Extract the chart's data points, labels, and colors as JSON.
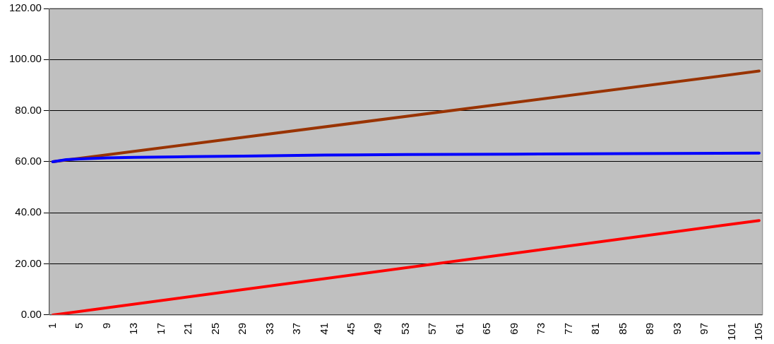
{
  "chart_data": {
    "type": "line",
    "xlim": [
      0.5,
      105.5
    ],
    "xticks": [
      1,
      5,
      9,
      13,
      17,
      21,
      25,
      29,
      33,
      37,
      41,
      45,
      49,
      53,
      57,
      61,
      65,
      69,
      73,
      77,
      81,
      85,
      89,
      93,
      97,
      101,
      105
    ],
    "ylim": [
      0,
      120
    ],
    "yticks": [
      {
        "value": 0,
        "label": "0.00"
      },
      {
        "value": 20,
        "label": "20.00"
      },
      {
        "value": 40,
        "label": "40.00"
      },
      {
        "value": 60,
        "label": "60.00"
      },
      {
        "value": 80,
        "label": "80.00"
      },
      {
        "value": 100,
        "label": "100.00"
      },
      {
        "value": 120,
        "label": "120.00"
      }
    ],
    "grid": "y",
    "legend": false,
    "marker": "none",
    "line_style": "solid",
    "series": [
      {
        "color": "#993300",
        "x": [
          1,
          105
        ],
        "values": [
          60,
          95.5
        ]
      },
      {
        "color": "#0000ff",
        "x": [
          1,
          3,
          5,
          9,
          13,
          21,
          29,
          41,
          53,
          69,
          85,
          105
        ],
        "values": [
          60,
          60.8,
          61.1,
          61.5,
          61.7,
          62,
          62.2,
          62.6,
          62.8,
          63,
          63.2,
          63.4
        ]
      },
      {
        "color": "#ff0000",
        "x": [
          1,
          105
        ],
        "values": [
          0,
          37
        ]
      }
    ]
  }
}
